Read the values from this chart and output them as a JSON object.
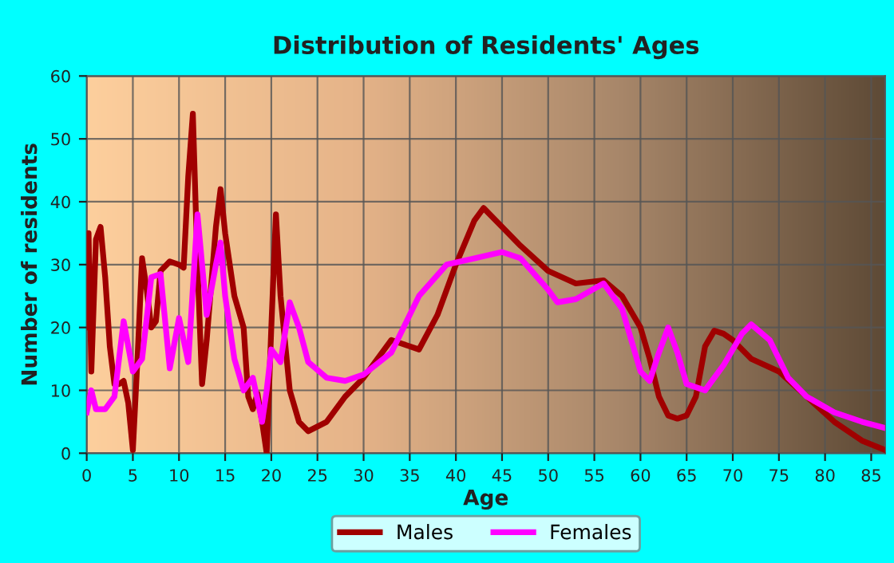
{
  "chart_data": {
    "type": "line",
    "title": "Distribution of Residents' Ages",
    "xlabel": "Age",
    "ylabel": "Number of residents",
    "xlim": [
      0,
      86.5
    ],
    "xticks": [
      0,
      5,
      10,
      15,
      20,
      25,
      30,
      35,
      40,
      45,
      50,
      55,
      60,
      65,
      70,
      75,
      80,
      85
    ],
    "ylim": [
      0,
      60
    ],
    "yticks": [
      0,
      10,
      20,
      30,
      40,
      50,
      60
    ],
    "grid": true,
    "legend": "bottom",
    "marker": "none",
    "line_style": "solid",
    "series": [
      {
        "name": "Males",
        "color": "#a00000",
        "x": [
          0,
          0.2,
          0.5,
          1,
          1.5,
          2,
          2.5,
          3,
          3.5,
          4,
          4.5,
          5,
          5.5,
          6,
          6.5,
          7,
          7.5,
          8,
          9,
          10,
          10.5,
          11,
          11.5,
          12,
          12.5,
          13,
          13.5,
          14,
          14.5,
          15,
          16,
          17,
          17.5,
          18,
          18.5,
          19,
          19.5,
          20,
          20.5,
          21,
          22,
          23,
          24,
          26,
          28,
          30,
          33,
          34,
          36,
          38,
          40,
          42,
          43,
          45,
          47,
          50,
          53,
          56,
          58,
          60,
          61,
          62,
          63,
          64,
          65,
          66,
          67,
          68,
          69,
          70,
          72,
          75,
          78,
          81,
          84,
          86.5
        ],
        "values": [
          20,
          35,
          13,
          34,
          36,
          28,
          17,
          11,
          11,
          11.5,
          8,
          0.5,
          15,
          31,
          26,
          20,
          21,
          29,
          30.5,
          30,
          29.5,
          44,
          54,
          30,
          11,
          18,
          27,
          36,
          42,
          35,
          25,
          20,
          9,
          7,
          9.5,
          5,
          0,
          20,
          38,
          25,
          10,
          5,
          3.5,
          5,
          9,
          12,
          18,
          17.5,
          16.5,
          22,
          30,
          37,
          39,
          36,
          33,
          29,
          27,
          27.5,
          25,
          20,
          15,
          9,
          6,
          5.5,
          6,
          9,
          17,
          19.5,
          19,
          18,
          15,
          13,
          9,
          5,
          2,
          0.5
        ]
      },
      {
        "name": "Females",
        "color": "#ff00ff",
        "x": [
          0,
          0.5,
          1,
          2,
          3,
          4,
          5,
          6,
          7,
          8,
          9,
          10,
          11,
          12,
          13,
          14,
          14.5,
          15,
          16,
          17,
          18,
          19,
          19.5,
          20,
          21,
          22,
          23,
          24,
          26,
          28,
          30,
          33,
          36,
          39,
          42,
          45,
          47,
          50,
          51,
          53,
          56,
          58,
          60,
          61,
          62,
          63,
          64,
          65,
          67,
          69,
          71,
          72,
          74,
          76,
          78,
          81,
          84,
          86.5
        ],
        "values": [
          6.5,
          10,
          7,
          7,
          9,
          21,
          13,
          15,
          28,
          28.5,
          13.5,
          21.5,
          14.5,
          38,
          22,
          30,
          33.5,
          25,
          15,
          10,
          12,
          5,
          10,
          16.5,
          14.5,
          24,
          20,
          14.5,
          12,
          11.5,
          12.5,
          16,
          25,
          30,
          31,
          32,
          31,
          26,
          24,
          24.5,
          27,
          23,
          13,
          11.5,
          16,
          20,
          16,
          11,
          10,
          14,
          19,
          20.5,
          18,
          12,
          9,
          6.5,
          5,
          4
        ]
      }
    ]
  }
}
